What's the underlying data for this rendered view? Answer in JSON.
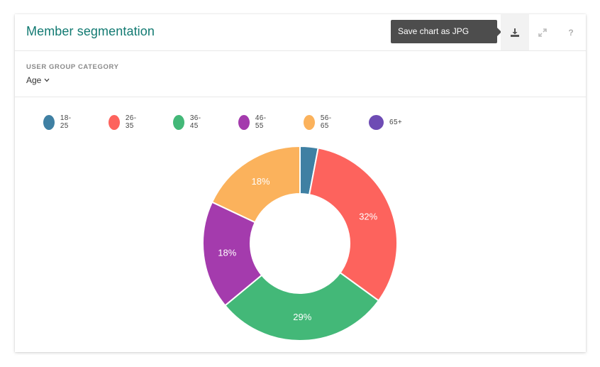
{
  "header": {
    "title": "Member segmentation",
    "tooltip": "Save chart as JPG",
    "icons": {
      "download": "download-icon",
      "expand": "expand-icon",
      "help": "help-icon"
    },
    "help_glyph": "?"
  },
  "filter": {
    "label": "USER GROUP CATEGORY",
    "selected": "Age"
  },
  "colors": {
    "accent": "#127a72",
    "series": [
      "#3f80a3",
      "#fd635d",
      "#43b878",
      "#a43bad",
      "#fbb25c",
      "#6e4cb4"
    ]
  },
  "chart_data": {
    "type": "pie",
    "donut": true,
    "legend_position": "top-left",
    "categories": [
      "18-25",
      "26-35",
      "36-45",
      "46-55",
      "56-65",
      "65+"
    ],
    "values": [
      3,
      32,
      29,
      18,
      18,
      0
    ],
    "data_labels": [
      "",
      "32%",
      "29%",
      "18%",
      "18%",
      ""
    ]
  }
}
